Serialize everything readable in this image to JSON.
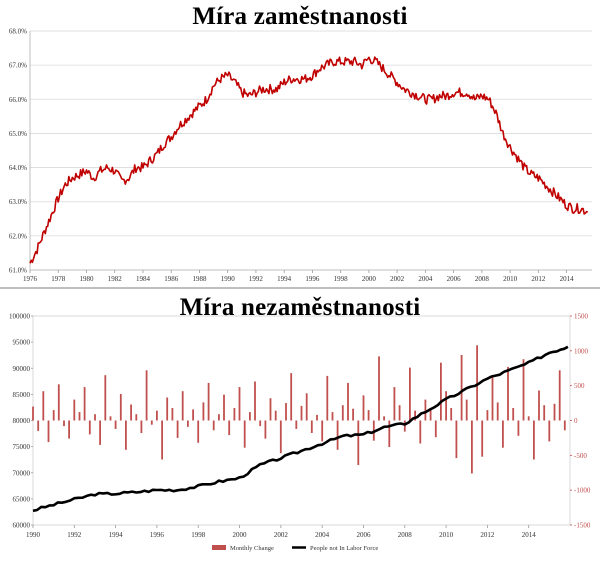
{
  "chart_data": [
    {
      "type": "line",
      "title": "Míra zaměstnanosti",
      "xlabel": "",
      "ylabel": "",
      "xlim": [
        1976,
        2015.8
      ],
      "ylim": [
        61.0,
        68.0
      ],
      "y_ticks": [
        "61.0%",
        "62.0%",
        "63.0%",
        "64.0%",
        "65.0%",
        "66.0%",
        "67.0%",
        "68.0%"
      ],
      "x_ticks": [
        "1976",
        "1978",
        "1980",
        "1982",
        "1984",
        "1986",
        "1988",
        "1990",
        "1992",
        "1994",
        "1996",
        "1998",
        "2000",
        "2002",
        "2004",
        "2006",
        "2008",
        "2010",
        "2012",
        "2014"
      ],
      "grid": "horizontal",
      "colors": {
        "line": "#c00000"
      },
      "series": [
        {
          "x": [
            1976.0,
            1976.5,
            1977.0,
            1977.5,
            1978.0,
            1978.5,
            1979.0,
            1979.5,
            1980.0,
            1980.5,
            1981.0,
            1981.5,
            1982.0,
            1982.5,
            1983.0,
            1983.5,
            1984.0,
            1984.5,
            1985.0,
            1985.5,
            1986.0,
            1986.5,
            1987.0,
            1987.5,
            1988.0,
            1988.5,
            1989.0,
            1989.5,
            1990.0,
            1990.5,
            1991.0,
            1991.5,
            1992.0,
            1992.5,
            1993.0,
            1993.5,
            1994.0,
            1994.5,
            1995.0,
            1995.5,
            1996.0,
            1996.5,
            1997.0,
            1997.5,
            1998.0,
            1998.5,
            1999.0,
            1999.5,
            2000.0,
            2000.5,
            2001.0,
            2001.5,
            2002.0,
            2002.5,
            2003.0,
            2003.5,
            2004.0,
            2004.5,
            2005.0,
            2005.5,
            2006.0,
            2006.5,
            2007.0,
            2007.5,
            2008.0,
            2008.5,
            2009.0,
            2009.5,
            2010.0,
            2010.5,
            2011.0,
            2011.5,
            2012.0,
            2012.5,
            2013.0,
            2013.5,
            2014.0,
            2014.5,
            2015.0,
            2015.5
          ],
          "y": [
            61.2,
            61.6,
            62.1,
            62.6,
            63.1,
            63.5,
            63.7,
            63.8,
            63.9,
            63.7,
            63.9,
            64.0,
            63.9,
            63.6,
            63.7,
            64.0,
            64.0,
            64.2,
            64.4,
            64.7,
            64.9,
            65.2,
            65.4,
            65.6,
            65.8,
            66.0,
            66.4,
            66.6,
            66.7,
            66.5,
            66.2,
            66.1,
            66.2,
            66.3,
            66.3,
            66.3,
            66.5,
            66.6,
            66.6,
            66.6,
            66.7,
            66.9,
            67.0,
            67.1,
            67.1,
            67.1,
            67.1,
            67.0,
            67.2,
            67.1,
            66.9,
            66.7,
            66.5,
            66.3,
            66.2,
            66.1,
            66.0,
            66.0,
            66.1,
            66.1,
            66.2,
            66.2,
            66.2,
            66.0,
            66.1,
            66.0,
            65.6,
            65.0,
            64.6,
            64.3,
            64.0,
            63.8,
            63.7,
            63.5,
            63.3,
            63.1,
            62.9,
            62.8,
            62.8,
            62.7
          ]
        }
      ]
    },
    {
      "type": "bar+line",
      "title": "Míra nezaměstnanosti",
      "xlabel": "",
      "ylabel": "",
      "xlim": [
        1990,
        2016
      ],
      "ylim_left": [
        60000,
        100000
      ],
      "ylim_right": [
        -1500,
        1500
      ],
      "y_ticks_left": [
        "60000",
        "65000",
        "70000",
        "75000",
        "80000",
        "85000",
        "90000",
        "95000",
        "100000"
      ],
      "y_ticks_right": [
        "-1500",
        "-1000",
        "-500",
        "0",
        "500",
        "1000",
        "1500"
      ],
      "x_ticks": [
        "1990",
        "1992",
        "1994",
        "1996",
        "1998",
        "2000",
        "2002",
        "2004",
        "2006",
        "2008",
        "2010",
        "2012",
        "2014"
      ],
      "legend": {
        "position": "bottom",
        "items": [
          "Monthly Change",
          "People not In Labor Force"
        ]
      },
      "colors": {
        "bars": "#c0504d",
        "line": "#000000",
        "right_axis": "#c0504d"
      },
      "series": [
        {
          "name": "People not In Labor Force",
          "axis": "left",
          "x": [
            1990,
            1991,
            1992,
            1993,
            1994,
            1995,
            1996,
            1997,
            1998,
            1999,
            2000,
            2001,
            2002,
            2003,
            2004,
            2005,
            2006,
            2007,
            2008,
            2009,
            2010,
            2011,
            2012,
            2013,
            2014,
            2015,
            2015.9
          ],
          "y": [
            62800,
            63900,
            64900,
            65900,
            66000,
            66300,
            66700,
            66700,
            67400,
            68300,
            69000,
            71500,
            72800,
            74200,
            75600,
            77000,
            77300,
            78700,
            79400,
            81700,
            84000,
            86000,
            88000,
            89500,
            91000,
            93000,
            94100
          ]
        },
        {
          "name": "Monthly Change",
          "axis": "right",
          "x_start": 1990.0,
          "step_years": 0.25,
          "values": [
            200,
            -150,
            420,
            -310,
            150,
            520,
            -80,
            -260,
            300,
            120,
            480,
            -200,
            90,
            -350,
            650,
            60,
            -120,
            380,
            -420,
            230,
            90,
            -180,
            720,
            -60,
            140,
            -560,
            330,
            180,
            -250,
            420,
            -90,
            160,
            -320,
            260,
            540,
            -140,
            90,
            370,
            -210,
            180,
            480,
            -390,
            120,
            560,
            -80,
            -260,
            320,
            140,
            -470,
            250,
            680,
            -120,
            210,
            390,
            -180,
            80,
            -300,
            640,
            120,
            -420,
            220,
            540,
            170,
            -640,
            360,
            150,
            -290,
            920,
            60,
            -380,
            480,
            220,
            -160,
            760,
            140,
            -330,
            300,
            180,
            -240,
            830,
            420,
            180,
            -540,
            940,
            300,
            -760,
            1080,
            -520,
            150,
            640,
            260,
            -390,
            770,
            180,
            -220,
            880,
            60,
            -560,
            430,
            220,
            -300,
            240,
            720,
            -140
          ]
        }
      ]
    }
  ]
}
